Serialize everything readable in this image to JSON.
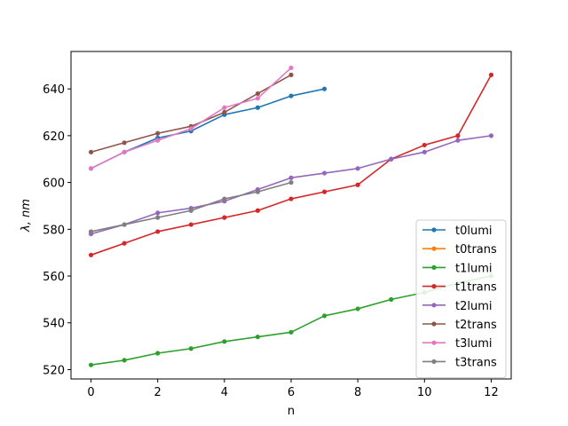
{
  "chart_data": {
    "type": "line",
    "xlabel": "n",
    "ylabel": "λ, nm",
    "xlim": [
      -0.6,
      12.6
    ],
    "ylim": [
      516,
      656
    ],
    "xticks": [
      0,
      2,
      4,
      6,
      8,
      10,
      12
    ],
    "yticks": [
      520,
      540,
      560,
      580,
      600,
      620,
      640
    ],
    "grid": false,
    "legend_position": "lower-right",
    "series": [
      {
        "name": "t0lumi",
        "color": "#1f77b4",
        "x": [
          0,
          1,
          2,
          3,
          4,
          5,
          6,
          7
        ],
        "y": [
          606,
          613,
          619,
          622,
          629,
          632,
          637,
          640
        ]
      },
      {
        "name": "t0trans",
        "color": "#ff7f0e",
        "x": [],
        "y": []
      },
      {
        "name": "t1lumi",
        "color": "#2ca02c",
        "x": [
          0,
          1,
          2,
          3,
          4,
          5,
          6,
          7,
          8,
          9,
          10,
          11,
          12
        ],
        "y": [
          522,
          524,
          527,
          529,
          532,
          534,
          536,
          543,
          546,
          550,
          553,
          557,
          560
        ]
      },
      {
        "name": "t1trans",
        "color": "#d62728",
        "x": [
          0,
          1,
          2,
          3,
          4,
          5,
          6,
          7,
          8,
          9,
          10,
          11,
          12
        ],
        "y": [
          569,
          574,
          579,
          582,
          585,
          588,
          593,
          596,
          599,
          610,
          616,
          620,
          646
        ]
      },
      {
        "name": "t2lumi",
        "color": "#9467bd",
        "x": [
          0,
          1,
          2,
          3,
          4,
          5,
          6,
          7,
          8,
          9,
          10,
          11,
          12
        ],
        "y": [
          578,
          582,
          587,
          589,
          592,
          597,
          602,
          604,
          606,
          610,
          613,
          618,
          620
        ]
      },
      {
        "name": "t2trans",
        "color": "#8c564b",
        "x": [
          0,
          1,
          2,
          3,
          4,
          5,
          6
        ],
        "y": [
          613,
          617,
          621,
          624,
          630,
          638,
          646
        ]
      },
      {
        "name": "t3lumi",
        "color": "#e377c2",
        "x": [
          0,
          1,
          2,
          3,
          4,
          5,
          6
        ],
        "y": [
          606,
          613,
          618,
          623,
          632,
          636,
          649
        ]
      },
      {
        "name": "t3trans",
        "color": "#7f7f7f",
        "x": [
          0,
          1,
          2,
          3,
          4,
          5,
          6
        ],
        "y": [
          579,
          582,
          585,
          588,
          593,
          596,
          600
        ]
      }
    ]
  }
}
